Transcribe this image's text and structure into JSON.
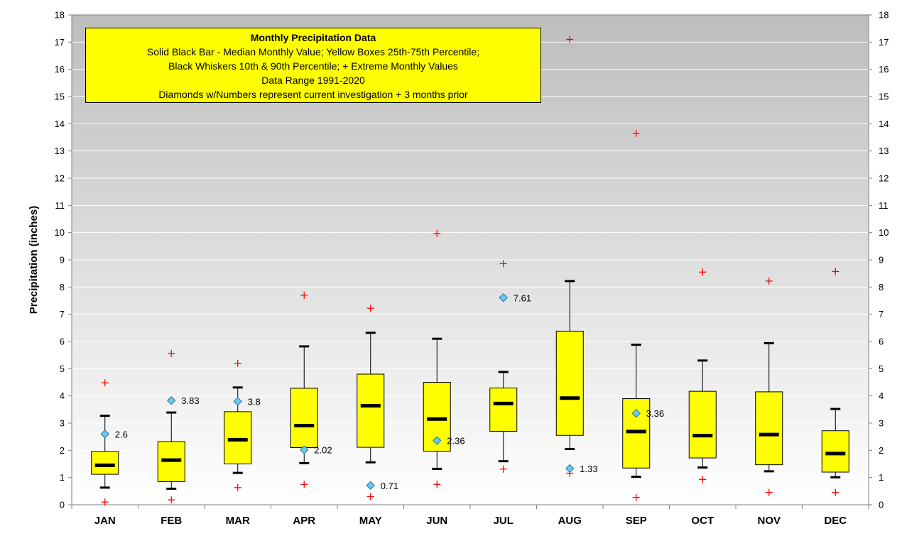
{
  "chart_data": {
    "type": "box",
    "title": "Monthly Precipitation Data",
    "legend_lines": [
      "Solid Black Bar - Median Monthly  Value; Yellow Boxes 25th-75th Percentile;",
      "Black Whiskers 10th & 90th Percentile; + Extreme Monthly Values",
      "Data Range 1991-2020",
      "Diamonds w/Numbers represent current investigation + 3 months prior"
    ],
    "ylabel": "Precipitation (inches)",
    "xlabel": "",
    "ylim": [
      0,
      18
    ],
    "yticks": [
      0,
      1,
      2,
      3,
      4,
      5,
      6,
      7,
      8,
      9,
      10,
      11,
      12,
      13,
      14,
      15,
      16,
      17,
      18
    ],
    "categories": [
      "JAN",
      "FEB",
      "MAR",
      "APR",
      "MAY",
      "JUN",
      "JUL",
      "AUG",
      "SEP",
      "OCT",
      "NOV",
      "DEC"
    ],
    "boxes": [
      {
        "p10": 0.63,
        "q1": 1.12,
        "median": 1.45,
        "q3": 1.96,
        "p90": 3.27,
        "min": 0.1,
        "max": 4.48
      },
      {
        "p10": 0.59,
        "q1": 0.85,
        "median": 1.64,
        "q3": 2.32,
        "p90": 3.39,
        "min": 0.18,
        "max": 5.56
      },
      {
        "p10": 1.17,
        "q1": 1.5,
        "median": 2.39,
        "q3": 3.42,
        "p90": 4.31,
        "min": 0.63,
        "max": 5.2
      },
      {
        "p10": 1.53,
        "q1": 2.1,
        "median": 2.91,
        "q3": 4.28,
        "p90": 5.82,
        "min": 0.75,
        "max": 7.7
      },
      {
        "p10": 1.56,
        "q1": 2.11,
        "median": 3.64,
        "q3": 4.8,
        "p90": 6.32,
        "min": 0.3,
        "max": 7.22
      },
      {
        "p10": 1.32,
        "q1": 1.97,
        "median": 3.15,
        "q3": 4.5,
        "p90": 6.1,
        "min": 0.75,
        "max": 9.97
      },
      {
        "p10": 1.6,
        "q1": 2.7,
        "median": 3.72,
        "q3": 4.29,
        "p90": 4.88,
        "min": 1.31,
        "max": 8.86
      },
      {
        "p10": 2.05,
        "q1": 2.55,
        "median": 3.92,
        "q3": 6.38,
        "p90": 8.22,
        "min": 1.16,
        "max": 17.1
      },
      {
        "p10": 1.03,
        "q1": 1.35,
        "median": 2.69,
        "q3": 3.9,
        "p90": 5.88,
        "min": 0.27,
        "max": 13.65
      },
      {
        "p10": 1.37,
        "q1": 1.72,
        "median": 2.54,
        "q3": 4.17,
        "p90": 5.3,
        "min": 0.93,
        "max": 8.55
      },
      {
        "p10": 1.23,
        "q1": 1.47,
        "median": 2.58,
        "q3": 4.15,
        "p90": 5.94,
        "min": 0.45,
        "max": 8.22
      },
      {
        "p10": 1.01,
        "q1": 1.2,
        "median": 1.88,
        "q3": 2.72,
        "p90": 3.52,
        "min": 0.45,
        "max": 8.57
      }
    ],
    "current": [
      {
        "month": "JAN",
        "value": 2.6,
        "label": "2.6"
      },
      {
        "month": "FEB",
        "value": 3.83,
        "label": "3.83"
      },
      {
        "month": "MAR",
        "value": 3.8,
        "label": "3.8"
      },
      {
        "month": "APR",
        "value": 2.02,
        "label": "2.02"
      },
      {
        "month": "MAY",
        "value": 0.71,
        "label": "0.71"
      },
      {
        "month": "JUN",
        "value": 2.36,
        "label": "2.36"
      },
      {
        "month": "JUL",
        "value": 7.61,
        "label": "7.61"
      },
      {
        "month": "AUG",
        "value": 1.33,
        "label": "1.33"
      },
      {
        "month": "SEP",
        "value": 3.36,
        "label": "3.36"
      }
    ],
    "colors": {
      "box": "#ffff00",
      "median": "#000000",
      "extreme": "#ff0000",
      "diamond": "#66ccee",
      "bg_top": "#c0c0c0",
      "bg_bottom": "#ffffff",
      "grid": "#ffffff"
    },
    "grid": true
  }
}
